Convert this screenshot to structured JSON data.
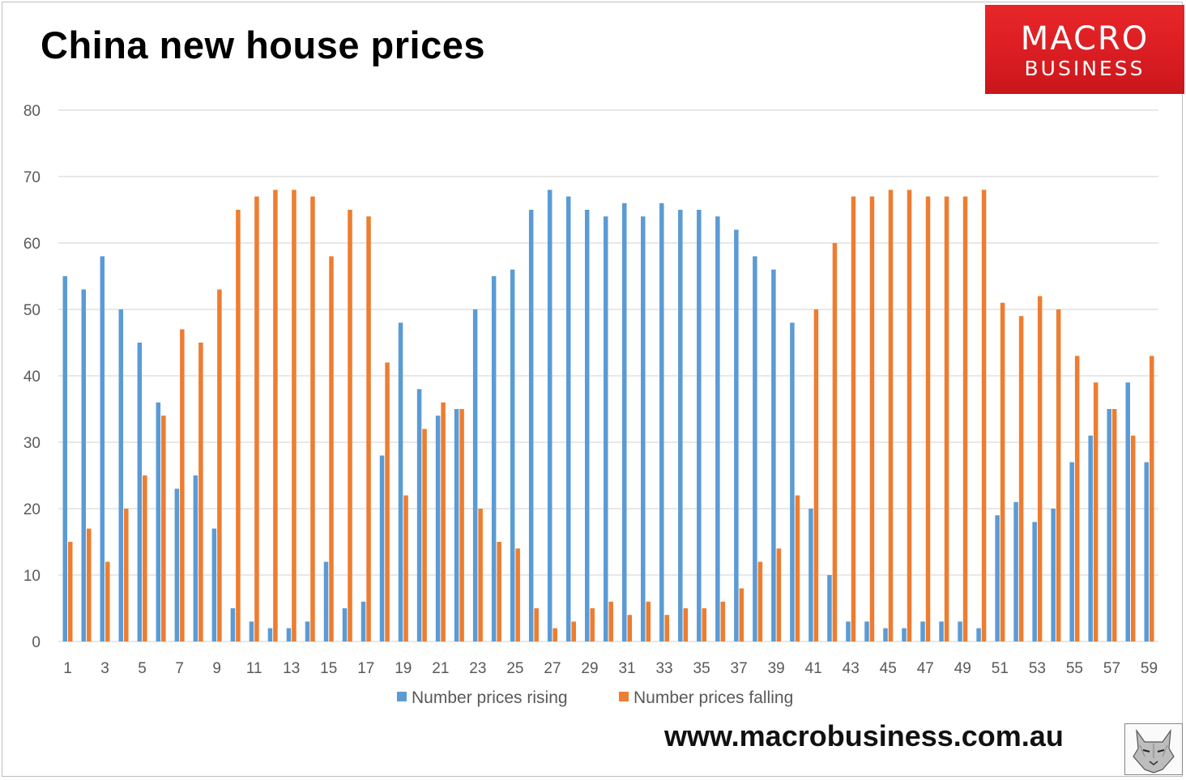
{
  "header": {
    "title": "China new house prices",
    "logo_line1": "MACRO",
    "logo_line2": "BUSINESS"
  },
  "footer": {
    "url": "www.macrobusiness.com.au",
    "mascot_icon": "wolf-icon"
  },
  "colors": {
    "rising": "#5b9bd5",
    "falling": "#ed7d31",
    "brand_red": "#e01f26"
  },
  "chart_data": {
    "type": "bar",
    "title": "China new house prices",
    "xlabel": "",
    "ylabel": "",
    "ylim": [
      0,
      80
    ],
    "yticks": [
      0,
      10,
      20,
      30,
      40,
      50,
      60,
      70,
      80
    ],
    "xtick_labels": [
      "1",
      "3",
      "5",
      "7",
      "9",
      "11",
      "13",
      "15",
      "17",
      "19",
      "21",
      "23",
      "25",
      "27",
      "29",
      "31",
      "33",
      "35",
      "37",
      "39",
      "41",
      "43",
      "45",
      "47",
      "49",
      "51",
      "53",
      "55",
      "57",
      "59"
    ],
    "categories": [
      1,
      2,
      3,
      4,
      5,
      6,
      7,
      8,
      9,
      10,
      11,
      12,
      13,
      14,
      15,
      16,
      17,
      18,
      19,
      20,
      21,
      22,
      23,
      24,
      25,
      26,
      27,
      28,
      29,
      30,
      31,
      32,
      33,
      34,
      35,
      36,
      37,
      38,
      39,
      40,
      41,
      42,
      43,
      44,
      45,
      46,
      47,
      48,
      49,
      50,
      51,
      52,
      53,
      54,
      55,
      56,
      57,
      58,
      59
    ],
    "grid": true,
    "legend_position": "bottom",
    "series": [
      {
        "name": "Number prices rising",
        "color": "#5b9bd5",
        "values": [
          55,
          53,
          58,
          50,
          45,
          36,
          23,
          25,
          17,
          5,
          3,
          2,
          2,
          3,
          12,
          5,
          6,
          28,
          48,
          38,
          34,
          35,
          50,
          55,
          56,
          65,
          68,
          67,
          65,
          64,
          66,
          64,
          66,
          65,
          65,
          64,
          62,
          58,
          56,
          48,
          20,
          10,
          3,
          3,
          2,
          2,
          3,
          3,
          3,
          2,
          19,
          21,
          18,
          20,
          27,
          31,
          35,
          39,
          27
        ]
      },
      {
        "name": "Number prices falling",
        "color": "#ed7d31",
        "values": [
          15,
          17,
          12,
          20,
          25,
          34,
          47,
          45,
          53,
          65,
          67,
          68,
          68,
          67,
          58,
          65,
          64,
          42,
          22,
          32,
          36,
          35,
          20,
          15,
          14,
          5,
          2,
          3,
          5,
          6,
          4,
          6,
          4,
          5,
          5,
          6,
          8,
          12,
          14,
          22,
          50,
          60,
          67,
          67,
          68,
          68,
          67,
          67,
          67,
          68,
          51,
          49,
          52,
          50,
          43,
          39,
          35,
          31,
          43
        ]
      }
    ]
  }
}
